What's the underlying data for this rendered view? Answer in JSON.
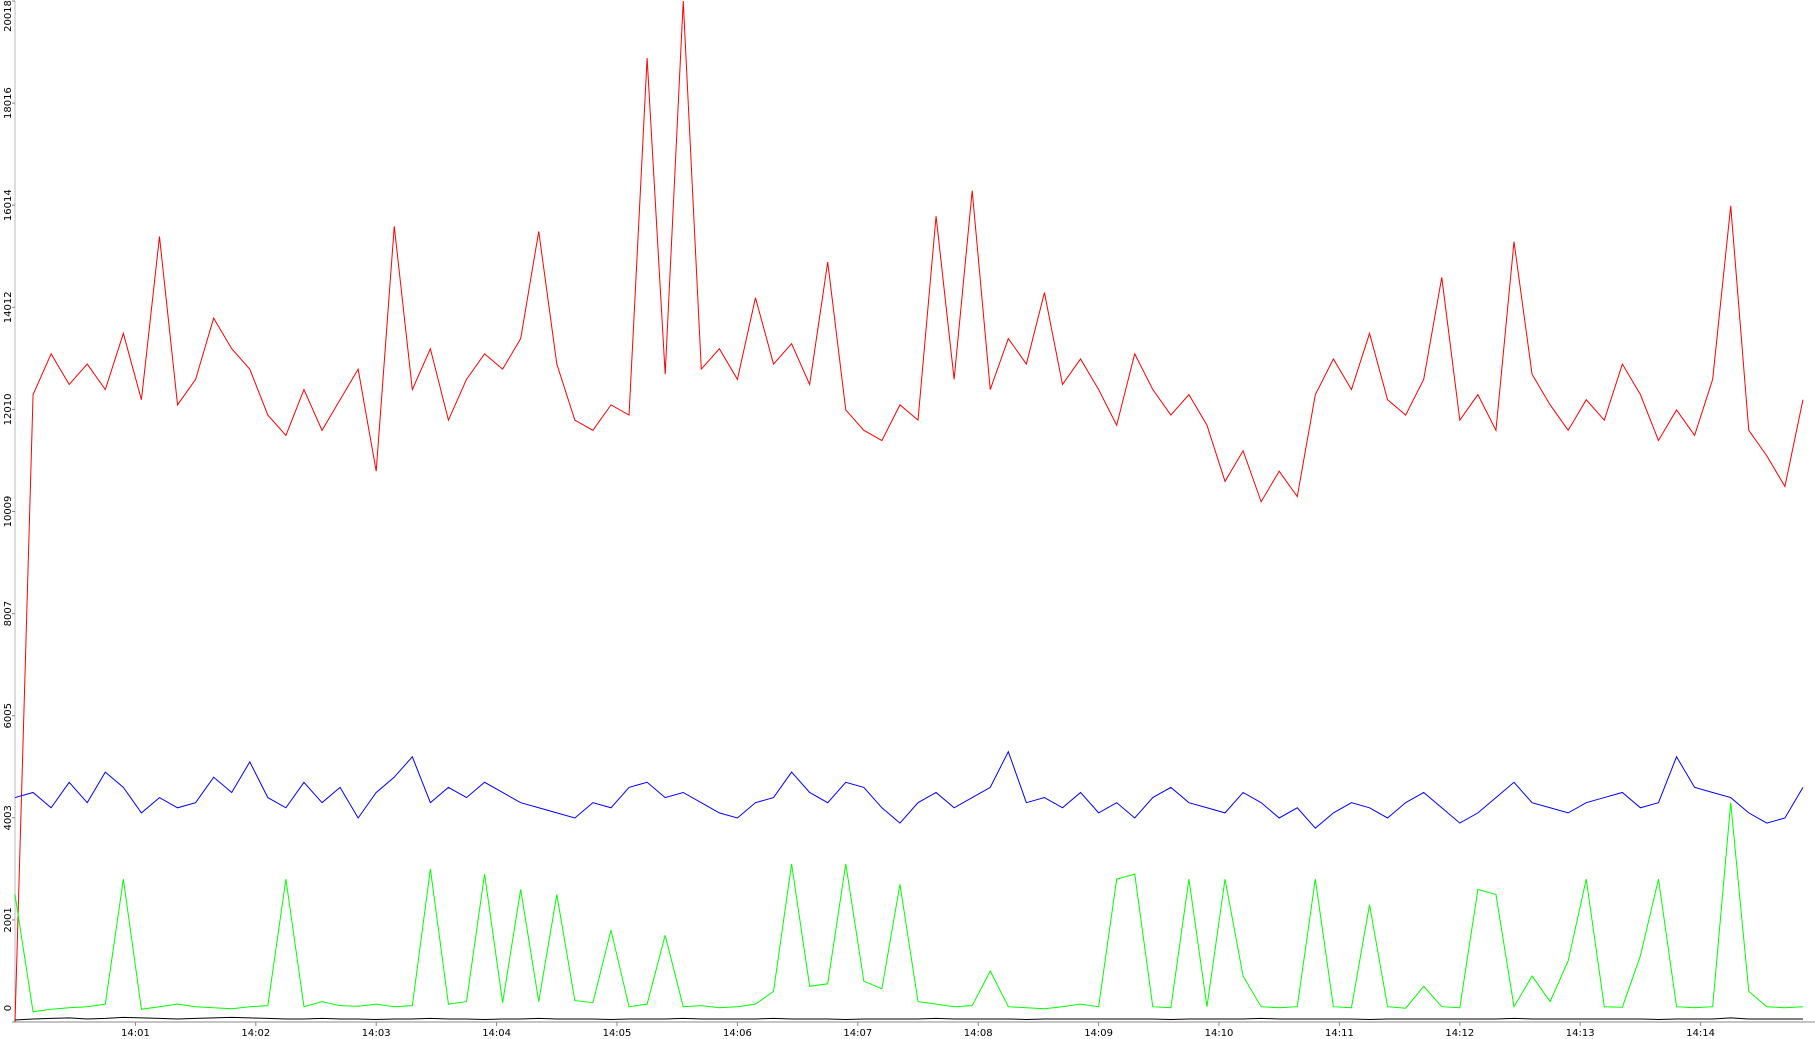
{
  "chart_data": {
    "type": "line",
    "x": [
      840,
      840.15,
      840.3,
      840.45,
      840.6,
      840.75,
      840.9,
      841.05,
      841.2,
      841.35,
      841.5,
      841.65,
      841.8,
      841.95,
      842.1,
      842.25,
      842.4,
      842.55,
      842.7,
      842.85,
      843,
      843.15,
      843.3,
      843.45,
      843.6,
      843.75,
      843.9,
      844.05,
      844.2,
      844.35,
      844.5,
      844.65,
      844.8,
      844.95,
      845.1,
      845.25,
      845.4,
      845.55,
      845.7,
      845.85,
      846,
      846.15,
      846.3,
      846.45,
      846.6,
      846.75,
      846.9,
      847.05,
      847.2,
      847.35,
      847.5,
      847.65,
      847.8,
      847.95,
      848.1,
      848.25,
      848.4,
      848.55,
      848.7,
      848.85,
      849,
      849.15,
      849.3,
      849.45,
      849.6,
      849.75,
      849.9,
      850.05,
      850.2,
      850.35,
      850.5,
      850.65,
      850.8,
      850.95,
      851.1,
      851.25,
      851.4,
      851.55,
      851.7,
      851.85,
      852,
      852.15,
      852.3,
      852.45,
      852.6,
      852.75,
      852.9,
      853.05,
      853.2,
      853.35,
      853.5,
      853.65,
      853.8,
      853.95,
      854.1,
      854.25,
      854.4,
      854.55,
      854.7,
      854.85
    ],
    "series": [
      {
        "color": "#ff0000",
        "values": [
          0,
          12300,
          13100,
          12500,
          12900,
          12400,
          13500,
          12200,
          15400,
          12100,
          12600,
          13800,
          13200,
          12800,
          11900,
          11500,
          12400,
          11600,
          12200,
          12800,
          10800,
          15600,
          12400,
          13200,
          11800,
          12600,
          13100,
          12800,
          13400,
          15500,
          12900,
          11800,
          11600,
          12100,
          11900,
          18900,
          12700,
          20018,
          12800,
          13200,
          12600,
          14200,
          12900,
          13300,
          12500,
          14900,
          12000,
          11600,
          11400,
          12100,
          11800,
          15800,
          12600,
          16300,
          12400,
          13400,
          12900,
          14300,
          12500,
          13000,
          12400,
          11700,
          13100,
          12400,
          11900,
          12300,
          11700,
          10600,
          11200,
          10200,
          10800,
          10300,
          12300,
          13000,
          12400,
          13500,
          12200,
          11900,
          12600,
          14600,
          11800,
          12300,
          11600,
          15300,
          12700,
          12100,
          11600,
          12200,
          11800,
          12900,
          12300,
          11400,
          12000,
          11500,
          12600,
          16000,
          11600,
          11100,
          10500,
          12200
        ]
      },
      {
        "color": "#0000ff",
        "values": [
          4400,
          4500,
          4200,
          4700,
          4300,
          4900,
          4600,
          4100,
          4400,
          4200,
          4300,
          4800,
          4500,
          5100,
          4400,
          4200,
          4700,
          4300,
          4600,
          4000,
          4500,
          4800,
          5200,
          4300,
          4600,
          4400,
          4700,
          4500,
          4300,
          4200,
          4100,
          4000,
          4300,
          4200,
          4600,
          4700,
          4400,
          4500,
          4300,
          4100,
          4000,
          4300,
          4400,
          4900,
          4500,
          4300,
          4700,
          4600,
          4200,
          3900,
          4300,
          4500,
          4200,
          4400,
          4600,
          5300,
          4300,
          4400,
          4200,
          4500,
          4100,
          4300,
          4000,
          4400,
          4600,
          4300,
          4200,
          4100,
          4500,
          4300,
          4000,
          4200,
          3800,
          4100,
          4300,
          4200,
          4000,
          4300,
          4500,
          4200,
          3900,
          4100,
          4400,
          4700,
          4300,
          4200,
          4100,
          4300,
          4400,
          4500,
          4200,
          4300,
          5200,
          4600,
          4500,
          4400,
          4100,
          3900,
          4000,
          4600
        ]
      },
      {
        "color": "#00ff00",
        "values": [
          2500,
          200,
          250,
          280,
          300,
          350,
          2800,
          250,
          300,
          350,
          300,
          280,
          260,
          300,
          320,
          2800,
          300,
          400,
          320,
          310,
          350,
          300,
          320,
          3000,
          350,
          400,
          2900,
          380,
          2600,
          400,
          2500,
          420,
          380,
          1800,
          300,
          350,
          1700,
          300,
          320,
          280,
          300,
          350,
          600,
          3100,
          700,
          750,
          3100,
          800,
          650,
          2700,
          400,
          350,
          300,
          320,
          1000,
          300,
          280,
          260,
          300,
          350,
          300,
          2800,
          2900,
          300,
          280,
          2800,
          300,
          2800,
          900,
          300,
          280,
          300,
          2800,
          300,
          280,
          2300,
          300,
          270,
          700,
          300,
          280,
          2600,
          2500,
          300,
          900,
          400,
          1200,
          2800,
          300,
          290,
          1300,
          2800,
          300,
          280,
          300,
          4300,
          600,
          300,
          280,
          300
        ]
      },
      {
        "color": "#000000",
        "values": [
          40,
          60,
          70,
          80,
          60,
          70,
          90,
          80,
          70,
          60,
          70,
          80,
          90,
          80,
          70,
          60,
          60,
          70,
          60,
          60,
          50,
          60,
          60,
          70,
          60,
          60,
          50,
          60,
          60,
          70,
          60,
          60,
          60,
          50,
          60,
          60,
          60,
          70,
          60,
          60,
          60,
          60,
          70,
          60,
          60,
          60,
          50,
          60,
          60,
          60,
          60,
          70,
          60,
          60,
          60,
          60,
          50,
          60,
          60,
          60,
          60,
          60,
          60,
          60,
          50,
          60,
          60,
          60,
          60,
          70,
          60,
          60,
          60,
          60,
          60,
          50,
          60,
          60,
          60,
          60,
          60,
          60,
          60,
          70,
          60,
          60,
          60,
          60,
          60,
          60,
          60,
          50,
          60,
          60,
          60,
          80,
          60,
          60,
          60,
          60
        ]
      }
    ],
    "xlim": [
      840,
      854.95
    ],
    "xticks": [
      {
        "value": 841,
        "label": "14:01"
      },
      {
        "value": 842,
        "label": "14:02"
      },
      {
        "value": 843,
        "label": "14:03"
      },
      {
        "value": 844,
        "label": "14:04"
      },
      {
        "value": 845,
        "label": "14:05"
      },
      {
        "value": 846,
        "label": "14:06"
      },
      {
        "value": 847,
        "label": "14:07"
      },
      {
        "value": 848,
        "label": "14:08"
      },
      {
        "value": 849,
        "label": "14:09"
      },
      {
        "value": 850,
        "label": "14:10"
      },
      {
        "value": 851,
        "label": "14:11"
      },
      {
        "value": 852,
        "label": "14:12"
      },
      {
        "value": 853,
        "label": "14:13"
      },
      {
        "value": 854,
        "label": "14:14"
      }
    ],
    "ylim": [
      0,
      20018
    ],
    "yticks": [
      0,
      2001,
      4003,
      6005,
      8007,
      10009,
      12010,
      14012,
      16014,
      18016,
      20018
    ]
  }
}
